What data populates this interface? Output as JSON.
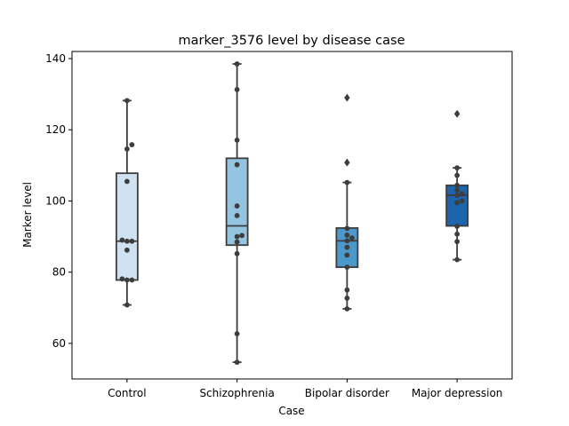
{
  "chart_data": {
    "type": "box",
    "title": "marker_3576 level by disease case",
    "xlabel": "Case",
    "ylabel": "Marker level",
    "ylim": [
      50,
      142
    ],
    "yticks": [
      60,
      80,
      100,
      120,
      140
    ],
    "grid": false,
    "legend": "none",
    "categories": [
      "Control",
      "Schizophrenia",
      "Bipolar disorder",
      "Major depression"
    ],
    "colors": [
      "#d0e1f2",
      "#94c4df",
      "#4b98ca",
      "#1c64ab"
    ],
    "boxes": [
      {
        "category": "Control",
        "whisker_low": 70.8,
        "q1": 77.8,
        "median": 88.7,
        "q3": 107.8,
        "whisker_high": 128.2,
        "outliers": []
      },
      {
        "category": "Schizophrenia",
        "whisker_low": 54.7,
        "q1": 87.6,
        "median": 93.0,
        "q3": 112.0,
        "whisker_high": 138.5,
        "outliers": []
      },
      {
        "category": "Bipolar disorder",
        "whisker_low": 69.7,
        "q1": 81.4,
        "median": 88.8,
        "q3": 92.4,
        "whisker_high": 105.2,
        "outliers": [
          110.8,
          129.0
        ]
      },
      {
        "category": "Major depression",
        "whisker_low": 83.5,
        "q1": 93.0,
        "median": 101.6,
        "q3": 104.4,
        "whisker_high": 109.3,
        "outliers": [
          124.5
        ]
      }
    ],
    "points": [
      {
        "category": "Control",
        "values": [
          70.8,
          77.8,
          77.8,
          78.1,
          86.2,
          88.7,
          88.7,
          89.0,
          105.5,
          114.6,
          115.8,
          128.2
        ]
      },
      {
        "category": "Schizophrenia",
        "values": [
          54.7,
          62.7,
          85.2,
          88.5,
          90.0,
          90.3,
          95.9,
          98.6,
          110.2,
          117.1,
          131.3,
          138.5
        ]
      },
      {
        "category": "Bipolar disorder",
        "values": [
          69.7,
          72.7,
          75.0,
          81.4,
          84.8,
          87.0,
          88.8,
          89.6,
          90.4,
          92.3,
          105.2
        ]
      },
      {
        "category": "Major depression",
        "values": [
          83.5,
          88.6,
          90.7,
          92.9,
          99.5,
          100.0,
          101.6,
          102.0,
          103.0,
          104.4,
          107.2,
          109.3
        ]
      }
    ]
  }
}
